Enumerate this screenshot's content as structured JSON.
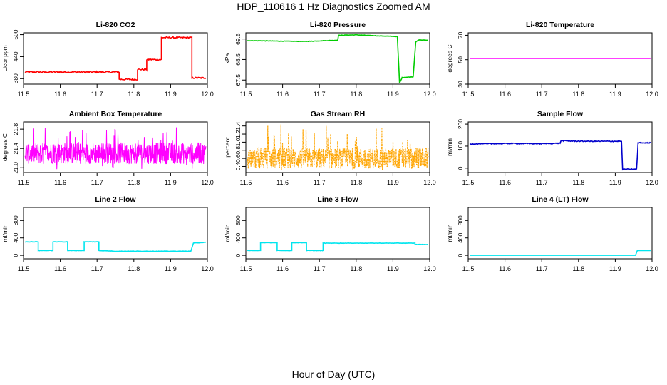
{
  "figure": {
    "title": "HDP_110616  1 Hz Diagnostics Zoomed AM",
    "xlabel": "Hour of Day (UTC)"
  },
  "chart_data": [
    {
      "id": "co2",
      "type": "line",
      "title": "Li-820 CO2",
      "ylabel": "Licor ppm",
      "color": "#ff0000",
      "noise": 2,
      "xlim": [
        11.5,
        12.0
      ],
      "ylim": [
        365,
        505
      ],
      "xticks": [
        11.5,
        11.6,
        11.7,
        11.8,
        11.9,
        12.0
      ],
      "yticks": [
        380,
        440,
        500
      ],
      "x": [
        11.5,
        11.76,
        11.76,
        11.81,
        11.81,
        11.835,
        11.835,
        11.875,
        11.875,
        11.958,
        11.958,
        12.0
      ],
      "y": [
        398,
        398,
        378,
        378,
        405,
        405,
        432,
        432,
        492,
        492,
        382,
        382
      ]
    },
    {
      "id": "pressure",
      "type": "line",
      "title": "Li-820 Pressure",
      "ylabel": "kPa",
      "color": "#00cc00",
      "noise": 0.01,
      "xlim": [
        11.5,
        12.0
      ],
      "ylim": [
        67.3,
        69.8
      ],
      "xticks": [
        11.5,
        11.6,
        11.7,
        11.8,
        11.9,
        12.0
      ],
      "yticks": [
        67.5,
        68.5,
        69.5
      ],
      "x": [
        11.5,
        11.58,
        11.66,
        11.75,
        11.752,
        11.8,
        11.85,
        11.912,
        11.918,
        11.925,
        11.955,
        11.962,
        11.97,
        12.0
      ],
      "y": [
        69.42,
        69.4,
        69.38,
        69.44,
        69.68,
        69.7,
        69.66,
        69.62,
        67.35,
        67.62,
        67.66,
        69.35,
        69.45,
        69.44
      ]
    },
    {
      "id": "temperature",
      "type": "line",
      "title": "Li-820 Temperature",
      "ylabel": "degrees C",
      "color": "#ff00ff",
      "noise": 0,
      "xlim": [
        11.5,
        12.0
      ],
      "ylim": [
        30,
        72
      ],
      "xticks": [
        11.5,
        11.6,
        11.7,
        11.8,
        11.9,
        12.0
      ],
      "yticks": [
        30,
        50,
        70
      ],
      "x": [
        11.5,
        12.0
      ],
      "y": [
        51,
        51
      ]
    },
    {
      "id": "ambient",
      "type": "line",
      "title": "Ambient Box Temperature",
      "ylabel": "degrees C",
      "color": "#ff00ff",
      "noise": 0,
      "random": true,
      "randmin": 20.96,
      "randmax": 21.85,
      "randcenter": 21.3,
      "randwidth": 0.14,
      "xlim": [
        11.5,
        12.0
      ],
      "ylim": [
        20.9,
        21.95
      ],
      "xticks": [
        11.5,
        11.6,
        11.7,
        11.8,
        11.9,
        12.0
      ],
      "yticks": [
        21.0,
        21.4,
        21.8
      ],
      "x": [],
      "y": []
    },
    {
      "id": "rh",
      "type": "line",
      "title": "Gas Stream RH",
      "ylabel": "percent",
      "color": "#ffa500",
      "noise": 0,
      "random": true,
      "dotted": true,
      "randmin": 0.3,
      "randmax": 1.45,
      "randcenter": 0.6,
      "randwidth": 0.16,
      "xlim": [
        11.5,
        12.0
      ],
      "ylim": [
        0.25,
        1.5
      ],
      "xticks": [
        11.5,
        11.6,
        11.7,
        11.8,
        11.9,
        12.0
      ],
      "yticks": [
        0.4,
        0.6,
        0.8,
        1.0,
        1.2,
        1.4
      ],
      "x": [],
      "y": []
    },
    {
      "id": "sample_flow",
      "type": "line",
      "title": "Sample Flow",
      "ylabel": "ml/min",
      "color": "#0000cc",
      "noise": 2,
      "xlim": [
        11.5,
        12.0
      ],
      "ylim": [
        -20,
        210
      ],
      "xticks": [
        11.5,
        11.6,
        11.7,
        11.8,
        11.9,
        12.0
      ],
      "yticks": [
        0,
        100,
        200
      ],
      "x": [
        11.5,
        11.62,
        11.7,
        11.75,
        11.752,
        11.82,
        11.917,
        11.92,
        11.958,
        11.962,
        12.0
      ],
      "y": [
        110,
        112,
        111,
        113,
        124,
        122,
        122,
        -5,
        -5,
        115,
        115
      ]
    },
    {
      "id": "line2",
      "type": "line",
      "title": "Line 2 Flow",
      "ylabel": "ml/min",
      "color": "#00e5ee",
      "noise": 4,
      "xlim": [
        11.5,
        12.0
      ],
      "ylim": [
        -80,
        1100
      ],
      "xticks": [
        11.5,
        11.6,
        11.7,
        11.8,
        11.9,
        12.0
      ],
      "yticks": [
        0,
        400,
        800
      ],
      "x": [
        11.5,
        11.54,
        11.54,
        11.58,
        11.58,
        11.62,
        11.62,
        11.665,
        11.665,
        11.705,
        11.705,
        11.75,
        11.955,
        11.962,
        12.0
      ],
      "y": [
        310,
        310,
        110,
        110,
        310,
        310,
        110,
        110,
        310,
        310,
        110,
        95,
        95,
        280,
        300
      ]
    },
    {
      "id": "line3",
      "type": "line",
      "title": "Line 3 Flow",
      "ylabel": "ml/min",
      "color": "#00e5ee",
      "noise": 4,
      "xlim": [
        11.5,
        12.0
      ],
      "ylim": [
        -80,
        1100
      ],
      "xticks": [
        11.5,
        11.6,
        11.7,
        11.8,
        11.9,
        12.0
      ],
      "yticks": [
        0,
        400,
        800
      ],
      "x": [
        11.5,
        11.54,
        11.54,
        11.585,
        11.585,
        11.625,
        11.625,
        11.665,
        11.665,
        11.71,
        11.71,
        11.96,
        11.96,
        12.0
      ],
      "y": [
        110,
        110,
        290,
        290,
        110,
        110,
        290,
        290,
        110,
        110,
        280,
        280,
        250,
        250
      ]
    },
    {
      "id": "line4",
      "type": "line",
      "title": "Line 4 (LT) Flow",
      "ylabel": "ml/min",
      "color": "#00e5ee",
      "noise": 0,
      "xlim": [
        11.5,
        12.0
      ],
      "ylim": [
        -80,
        1100
      ],
      "xticks": [
        11.5,
        11.6,
        11.7,
        11.8,
        11.9,
        12.0
      ],
      "yticks": [
        0,
        400,
        800
      ],
      "x": [
        11.5,
        11.955,
        11.96,
        12.0
      ],
      "y": [
        0,
        0,
        110,
        110
      ]
    }
  ]
}
